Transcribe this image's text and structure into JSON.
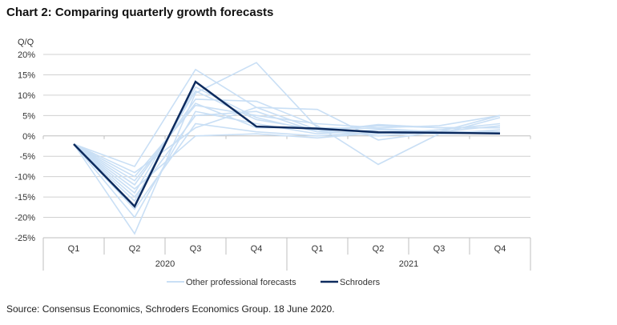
{
  "title": "Chart 2: Comparing quarterly growth forecasts",
  "source": "Source: Consensus Economics, Schroders Economics Group. 18 June 2020.",
  "chart_data": {
    "type": "line",
    "title": "Chart 2: Comparing quarterly growth forecasts",
    "ylabel": "Q/Q",
    "xlabel": "",
    "ylim": [
      -25,
      20
    ],
    "yticks": [
      20,
      15,
      10,
      5,
      0,
      -5,
      -10,
      -15,
      -20,
      -25
    ],
    "ytick_labels": [
      "20%",
      "15%",
      "10%",
      "5%",
      "0%",
      "-5%",
      "-10%",
      "-15%",
      "-20%",
      "-25%"
    ],
    "categories": [
      "Q1",
      "Q2",
      "Q3",
      "Q4",
      "Q1",
      "Q2",
      "Q3",
      "Q4"
    ],
    "year_groups": [
      {
        "label": "2020",
        "span": 4
      },
      {
        "label": "2021",
        "span": 4
      }
    ],
    "grid": true,
    "legend_position": "bottom",
    "colors": {
      "other": "#c9dff5",
      "schroders": "#0d2b5e",
      "grid": "#d0d0d0",
      "axis": "#bfbfbf"
    },
    "series": [
      {
        "name": "Schroders",
        "values": [
          -2.0,
          -17.3,
          13.3,
          2.3,
          1.8,
          0.9,
          0.8,
          0.6
        ]
      },
      {
        "name": "Other professional forecasts",
        "values": [
          -2.0,
          -7.5,
          16.3,
          7.0,
          6.5,
          -1.0,
          1.0,
          5.0
        ]
      },
      {
        "name": "Other professional forecasts",
        "values": [
          -2.0,
          -24.0,
          10.5,
          18.0,
          2.0,
          1.0,
          1.0,
          2.5
        ]
      },
      {
        "name": "Other professional forecasts",
        "values": [
          -2.0,
          -12.0,
          9.0,
          8.5,
          2.5,
          -7.0,
          0.5,
          4.5
        ]
      },
      {
        "name": "Other professional forecasts",
        "values": [
          -2.0,
          -10.0,
          7.5,
          5.0,
          3.0,
          2.0,
          2.5,
          5.0
        ]
      },
      {
        "name": "Other professional forecasts",
        "values": [
          -2.0,
          -14.0,
          11.0,
          4.0,
          1.5,
          2.5,
          2.0,
          2.0
        ]
      },
      {
        "name": "Other professional forecasts",
        "values": [
          -2.0,
          -20.0,
          6.0,
          3.0,
          0.5,
          1.5,
          1.0,
          1.0
        ]
      },
      {
        "name": "Other professional forecasts",
        "values": [
          -2.0,
          -15.0,
          5.0,
          6.0,
          1.0,
          0.5,
          1.5,
          3.0
        ]
      },
      {
        "name": "Other professional forecasts",
        "values": [
          -2.0,
          -18.0,
          3.0,
          1.0,
          0.0,
          1.0,
          0.5,
          1.5
        ]
      },
      {
        "name": "Other professional forecasts",
        "values": [
          -2.0,
          -11.0,
          8.0,
          2.0,
          2.0,
          1.8,
          1.0,
          0.5
        ]
      },
      {
        "name": "Other professional forecasts",
        "values": [
          -2.0,
          -13.0,
          0.0,
          0.5,
          -0.5,
          0.8,
          0.5,
          0.8
        ]
      },
      {
        "name": "Other professional forecasts",
        "values": [
          -2.0,
          -16.0,
          12.0,
          4.5,
          1.0,
          2.8,
          2.0,
          2.0
        ]
      },
      {
        "name": "Other professional forecasts",
        "values": [
          -2.0,
          -9.0,
          2.0,
          7.0,
          1.5,
          0.0,
          1.0,
          1.0
        ]
      }
    ],
    "legend": [
      {
        "label": "Other professional forecasts",
        "color": "#c9dff5"
      },
      {
        "label": "Schroders",
        "color": "#0d2b5e"
      }
    ]
  }
}
